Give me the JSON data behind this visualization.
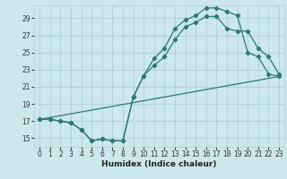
{
  "title": "",
  "xlabel": "Humidex (Indice chaleur)",
  "background_color": "#cce8ec",
  "grid_color": "#b0d0d5",
  "line_color": "#2d7a6e",
  "xlim": [
    -0.5,
    23.5
  ],
  "ylim": [
    14.0,
    30.5
  ],
  "xticks": [
    0,
    1,
    2,
    3,
    4,
    5,
    6,
    7,
    8,
    9,
    10,
    11,
    12,
    13,
    14,
    15,
    16,
    17,
    18,
    19,
    20,
    21,
    22,
    23
  ],
  "yticks": [
    15,
    17,
    19,
    21,
    23,
    25,
    27,
    29
  ],
  "line1_x": [
    0,
    1,
    2,
    3,
    4,
    5,
    6,
    7,
    8,
    9,
    10,
    11,
    12,
    13,
    14,
    15,
    16,
    17,
    18,
    19,
    20,
    21,
    22,
    23
  ],
  "line1_y": [
    17.2,
    17.2,
    17.0,
    16.8,
    16.0,
    14.7,
    14.9,
    14.7,
    14.7,
    19.8,
    22.3,
    24.3,
    25.5,
    27.8,
    28.8,
    29.3,
    30.2,
    30.2,
    29.8,
    29.3,
    25.0,
    24.5,
    22.5,
    22.2
  ],
  "line2_x": [
    0,
    1,
    2,
    3,
    4,
    5,
    6,
    7,
    8,
    9,
    10,
    11,
    12,
    13,
    14,
    15,
    16,
    17,
    18,
    19,
    20,
    21,
    22,
    23
  ],
  "line2_y": [
    17.2,
    17.2,
    17.0,
    16.8,
    16.0,
    14.7,
    14.9,
    14.7,
    14.7,
    19.8,
    22.3,
    23.5,
    24.5,
    26.5,
    28.0,
    28.5,
    29.2,
    29.2,
    27.8,
    27.5,
    27.5,
    25.5,
    24.5,
    22.5
  ],
  "line3_x": [
    0,
    23
  ],
  "line3_y": [
    17.2,
    22.2
  ],
  "marker_line1_x": [
    0,
    1,
    2,
    3,
    4,
    5,
    6,
    7,
    8,
    9,
    10,
    11,
    12,
    13,
    14,
    15,
    16,
    17,
    18,
    19,
    20,
    21,
    22,
    23
  ],
  "marker_line1_y": [
    17.2,
    17.2,
    17.0,
    16.8,
    16.0,
    14.7,
    14.9,
    14.7,
    14.7,
    19.8,
    22.3,
    24.3,
    25.5,
    27.8,
    28.8,
    29.3,
    30.2,
    30.2,
    29.8,
    29.3,
    25.0,
    24.5,
    22.5,
    22.2
  ],
  "marker_line2_x": [
    0,
    1,
    2,
    3,
    4,
    5,
    6,
    7,
    8,
    9,
    10,
    11,
    12,
    13,
    14,
    15,
    16,
    17,
    18,
    19,
    20,
    21,
    22,
    23
  ],
  "marker_line2_y": [
    17.2,
    17.2,
    17.0,
    16.8,
    16.0,
    14.7,
    14.9,
    14.7,
    14.7,
    19.8,
    22.3,
    23.5,
    24.5,
    26.5,
    28.0,
    28.5,
    29.2,
    29.2,
    27.8,
    27.5,
    27.5,
    25.5,
    24.5,
    22.5
  ]
}
